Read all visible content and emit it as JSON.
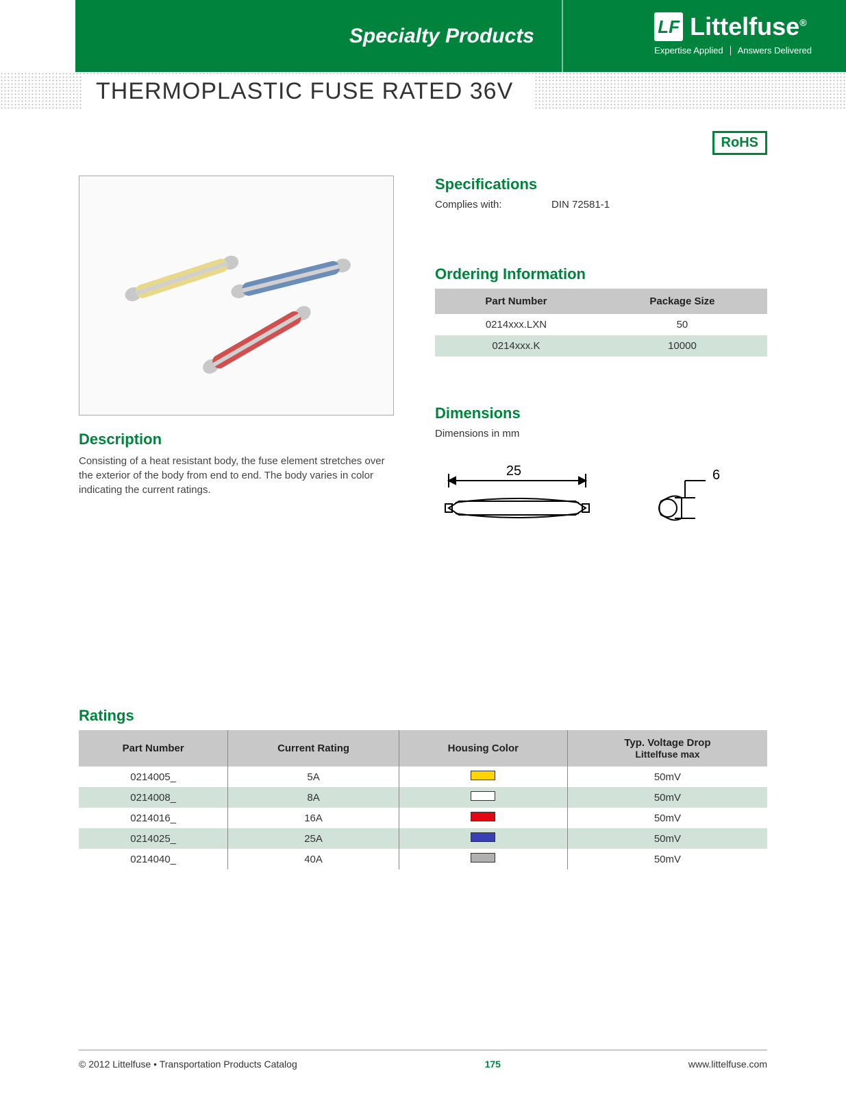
{
  "header": {
    "category": "Specialty Products",
    "brand": "Littelfuse",
    "brand_reg": "®",
    "tagline_left": "Expertise Applied",
    "tagline_right": "Answers Delivered",
    "logo_bg": "#ffffff",
    "logo_fg": "#00843d",
    "bar_color": "#00843d"
  },
  "product_title": "THERMOPLASTIC FUSE RATED 36V",
  "badges": {
    "rohs": "RoHS",
    "rohs_color": "#00843d"
  },
  "description": {
    "heading": "Description",
    "text": "Consisting of a heat resistant body, the fuse element stretches over the exterior of the body from end to end. The body varies in color indicating the current ratings."
  },
  "specifications": {
    "heading": "Specifications",
    "rows": [
      {
        "label": "Complies with:",
        "value": "DIN 72581-1"
      }
    ]
  },
  "ordering": {
    "heading": "Ordering Information",
    "columns": [
      "Part Number",
      "Package Size"
    ],
    "rows": [
      {
        "part": "0214xxx.LXN",
        "pkg": "50"
      },
      {
        "part": "0214xxx.K",
        "pkg": "10000"
      }
    ],
    "header_bg": "#c8c8c8",
    "row_alt_bg": "#d1e2d8"
  },
  "dimensions": {
    "heading": "Dimensions",
    "subtitle": "Dimensions in mm",
    "length": "25",
    "height": "6",
    "stroke": "#000000"
  },
  "ratings": {
    "heading": "Ratings",
    "columns": [
      "Part Number",
      "Current Rating",
      "Housing Color",
      "Typ. Voltage Drop"
    ],
    "col4_sub": "Littelfuse max",
    "rows": [
      {
        "part": "0214005_",
        "current": "5A",
        "color": "#ffd400",
        "vdrop": "50mV"
      },
      {
        "part": "0214008_",
        "current": "8A",
        "color": "#ffffff",
        "vdrop": "50mV"
      },
      {
        "part": "0214016_",
        "current": "16A",
        "color": "#e30613",
        "vdrop": "50mV"
      },
      {
        "part": "0214025_",
        "current": "25A",
        "color": "#3b3fb5",
        "vdrop": "50mV"
      },
      {
        "part": "0214040_",
        "current": "40A",
        "color": "#b0b0b0",
        "vdrop": "50mV"
      }
    ],
    "header_bg": "#c8c8c8",
    "row_alt_bg": "#d1e2d8"
  },
  "photo": {
    "fuse_colors": [
      "#e8d88a",
      "#6b8db8",
      "#d05050"
    ],
    "cap_color": "#c0c0c0",
    "band_color": "#d8d8d8"
  },
  "footer": {
    "left": "© 2012 Littelfuse • Transportation Products Catalog",
    "page": "175",
    "right": "www.littelfuse.com"
  },
  "colors": {
    "green": "#00843d",
    "header_grey": "#c8c8c8",
    "alt_row": "#d1e2d8"
  }
}
